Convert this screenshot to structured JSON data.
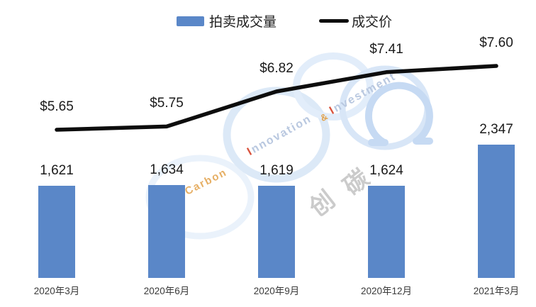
{
  "legend": {
    "items": [
      {
        "label": "拍卖成交量",
        "swatch": "bar"
      },
      {
        "label": "成交价",
        "swatch": "line"
      }
    ]
  },
  "chart_data": {
    "type": "combo-bar-line",
    "categories": [
      "2020年3月",
      "2020年6月",
      "2020年9月",
      "2020年12月",
      "2021年3月"
    ],
    "series": [
      {
        "name": "拍卖成交量",
        "type": "bar",
        "values": [
          1621,
          1634,
          1619,
          1624,
          2347
        ],
        "labels": [
          "1,621",
          "1,634",
          "1,619",
          "1,624",
          "2,347"
        ],
        "color": "#5a87c8"
      },
      {
        "name": "成交价",
        "type": "line",
        "values": [
          5.65,
          5.75,
          6.82,
          7.41,
          7.6
        ],
        "labels": [
          "$5.65",
          "$5.75",
          "$6.82",
          "$7.41",
          "$7.60"
        ],
        "color": "#0d0d0d"
      }
    ],
    "title": "",
    "xlabel": "",
    "ylabel": "",
    "bar_axis_baseline": 0,
    "gridlines": false,
    "legend_position": "top-center",
    "data_labels_shown": true
  },
  "colors": {
    "bar": "#5a87c8",
    "line": "#0d0d0d",
    "value_label": "#1a1a1a",
    "axis_label": "#3a3a3a",
    "watermark_ring_light": "#e7f0fb",
    "watermark_ring_mid": "#dce9f7",
    "watermark_ring_dark": "#c6daf3",
    "watermark_orange": "#e2a24b",
    "watermark_red": "#d9523c",
    "watermark_blue_text": "#b9c8e0",
    "watermark_gray_text": "#cbcbcb"
  },
  "watermark": {
    "carbon": "SinoCarbon",
    "innovation": "Innovation",
    "amp": "&",
    "investment": "Investment",
    "cn_left": "创",
    "cn_right": "碳"
  }
}
